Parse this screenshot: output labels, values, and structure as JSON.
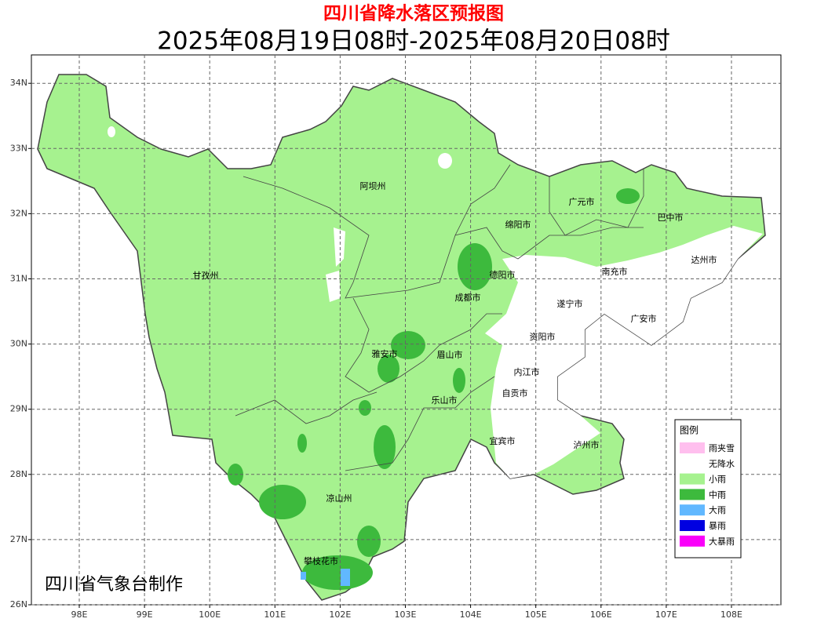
{
  "header": {
    "title": "四川省降水落区预报图",
    "subtitle": "2025年08月19日08时-2025年08月20日08时"
  },
  "map": {
    "lon_ticks": [
      {
        "value": 98,
        "label": "98E"
      },
      {
        "value": 99,
        "label": "99E"
      },
      {
        "value": 100,
        "label": "100E"
      },
      {
        "value": 101,
        "label": "101E"
      },
      {
        "value": 102,
        "label": "102E"
      },
      {
        "value": 103,
        "label": "103E"
      },
      {
        "value": 104,
        "label": "104E"
      },
      {
        "value": 105,
        "label": "105E"
      },
      {
        "value": 106,
        "label": "106E"
      },
      {
        "value": 107,
        "label": "107E"
      },
      {
        "value": 108,
        "label": "108E"
      }
    ],
    "lat_ticks": [
      {
        "value": 26,
        "label": "26N"
      },
      {
        "value": 27,
        "label": "27N"
      },
      {
        "value": 28,
        "label": "28N"
      },
      {
        "value": 29,
        "label": "29N"
      },
      {
        "value": 30,
        "label": "30N"
      },
      {
        "value": 31,
        "label": "31N"
      },
      {
        "value": 32,
        "label": "32N"
      },
      {
        "value": 33,
        "label": "33N"
      },
      {
        "value": 34,
        "label": "34N"
      }
    ],
    "places": [
      "阿坝州",
      "甘孜州",
      "绵阳市",
      "广元市",
      "巴中市",
      "达州市",
      "德阳市",
      "南充市",
      "成都市",
      "遂宁市",
      "广安市",
      "资阳市",
      "雅安市",
      "眉山市",
      "内江市",
      "自贡市",
      "乐山市",
      "宜宾市",
      "泸州市",
      "凉山州",
      "攀枝花市"
    ],
    "credit": "四川省气象台制作"
  },
  "legend": {
    "title": "图例",
    "items": [
      {
        "label": "雨夹雪",
        "color": "#ffbfee"
      },
      {
        "label": "无降水",
        "color": "#ffffff"
      },
      {
        "label": "小雨",
        "color": "#a6f28f"
      },
      {
        "label": "中雨",
        "color": "#3dba3d"
      },
      {
        "label": "大雨",
        "color": "#61b8ff"
      },
      {
        "label": "暴雨",
        "color": "#0000e1"
      },
      {
        "label": "大暴雨",
        "color": "#fa00fa"
      }
    ]
  }
}
